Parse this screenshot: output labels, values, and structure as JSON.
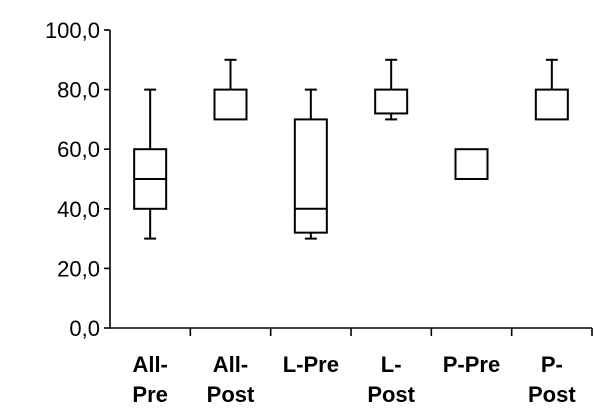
{
  "chart_data": {
    "type": "boxplot",
    "title": "",
    "xlabel": "",
    "ylabel": "",
    "ylim": [
      0,
      100
    ],
    "yticks": [
      "0,0",
      "20,0",
      "40,0",
      "60,0",
      "80,0",
      "100,0"
    ],
    "grid": false,
    "legend": "none",
    "categories": [
      [
        "All-",
        "Pre"
      ],
      [
        "All-",
        "Post"
      ],
      [
        "L-Pre"
      ],
      [
        "L-",
        "Post"
      ],
      [
        "P-Pre"
      ],
      [
        "P-",
        "Post"
      ]
    ],
    "boxes": [
      {
        "min": 30,
        "q1": 40,
        "median": 50,
        "q3": 60,
        "max": 80
      },
      {
        "min": 70,
        "q1": 70,
        "median": 70,
        "q3": 80,
        "max": 90
      },
      {
        "min": 30,
        "q1": 32,
        "median": 40,
        "q3": 70,
        "max": 80
      },
      {
        "min": 70,
        "q1": 72,
        "median": 72,
        "q3": 80,
        "max": 90
      },
      {
        "min": 50,
        "q1": 50,
        "median": 50,
        "q3": 60,
        "max": 60
      },
      {
        "min": 70,
        "q1": 70,
        "median": 70,
        "q3": 80,
        "max": 90
      }
    ],
    "colors": {
      "stroke": "#000000",
      "fill": "#ffffff"
    }
  }
}
